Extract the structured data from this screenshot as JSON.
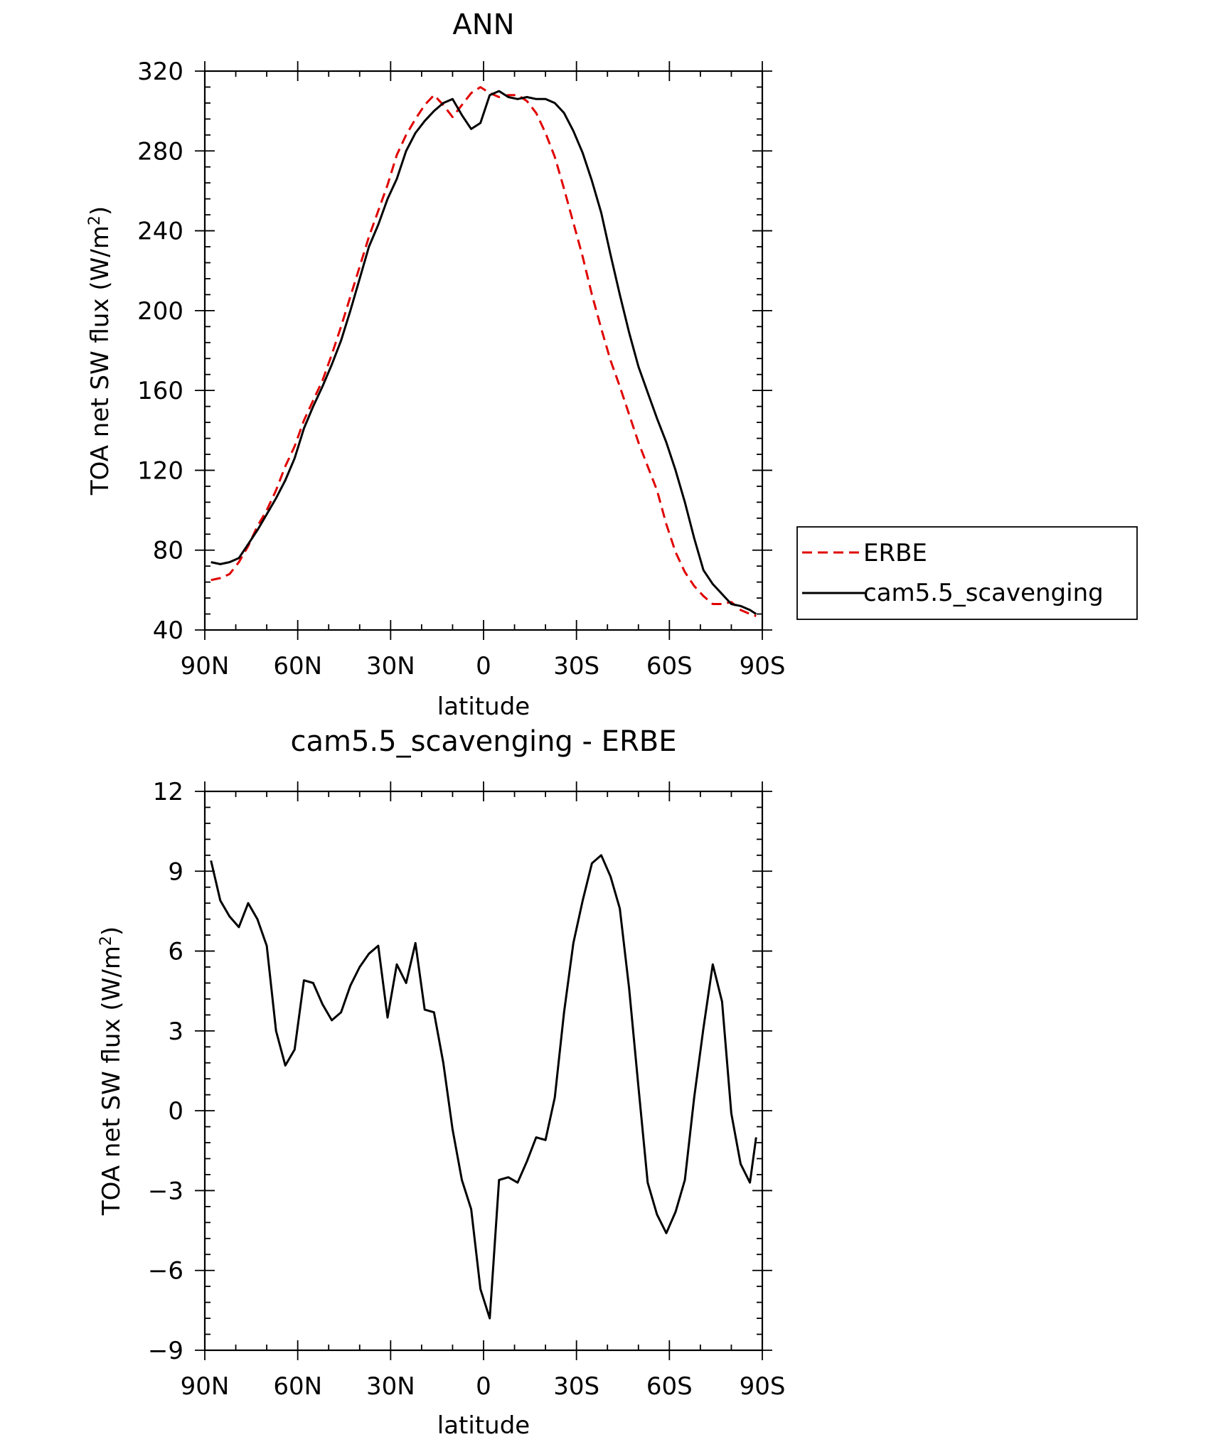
{
  "chart_data": [
    {
      "type": "line",
      "title": "ANN",
      "xlabel": "latitude",
      "ylabel_main": "TOA net SW flux (W/m",
      "ylabel_sup": "2",
      "ylabel_close": ")",
      "xlim": [
        88,
        -88
      ],
      "ylim": [
        40,
        320
      ],
      "yticks": [
        40,
        80,
        120,
        160,
        200,
        240,
        280,
        320
      ],
      "xticks": [
        {
          "value": 90,
          "label": "90N"
        },
        {
          "value": 60,
          "label": "60N"
        },
        {
          "value": 30,
          "label": "30N"
        },
        {
          "value": 0,
          "label": "0"
        },
        {
          "value": -30,
          "label": "30S"
        },
        {
          "value": -60,
          "label": "60S"
        },
        {
          "value": -90,
          "label": "90S"
        }
      ],
      "legend_position": "right",
      "series": [
        {
          "name": "ERBE",
          "color": "#e00000",
          "dash": true,
          "x": [
            88,
            85,
            82,
            79,
            76,
            73,
            70,
            67,
            64,
            61,
            58,
            55,
            52,
            49,
            46,
            43,
            40,
            37,
            34,
            31,
            28,
            25,
            22,
            19,
            16,
            13,
            10,
            7,
            4,
            1,
            -2,
            -5,
            -8,
            -11,
            -14,
            -17,
            -20,
            -23,
            -26,
            -29,
            -32,
            -35,
            -38,
            -41,
            -44,
            -47,
            -50,
            -53,
            -56,
            -59,
            -62,
            -65,
            -68,
            -71,
            -74,
            -77,
            -80,
            -83,
            -86,
            -88
          ],
          "y": [
            65,
            66,
            68,
            74,
            82,
            92,
            100,
            110,
            122,
            132,
            145,
            155,
            165,
            178,
            192,
            207,
            222,
            237,
            250,
            263,
            278,
            288,
            296,
            303,
            308,
            303,
            297,
            303,
            309,
            312,
            309,
            307,
            308,
            308,
            305,
            299,
            289,
            277,
            261,
            244,
            227,
            208,
            191,
            175,
            162,
            148,
            134,
            122,
            110,
            93,
            79,
            69,
            62,
            57,
            53,
            53,
            54,
            50,
            48,
            47
          ]
        },
        {
          "name": "cam5.5_scavenging",
          "color": "#000000",
          "dash": false,
          "x": [
            88,
            85,
            82,
            79,
            76,
            73,
            70,
            67,
            64,
            61,
            58,
            55,
            52,
            49,
            46,
            43,
            40,
            37,
            34,
            31,
            28,
            25,
            22,
            19,
            16,
            13,
            10,
            7,
            4,
            1,
            -2,
            -5,
            -8,
            -11,
            -14,
            -17,
            -20,
            -23,
            -26,
            -29,
            -32,
            -35,
            -38,
            -41,
            -44,
            -47,
            -50,
            -53,
            -56,
            -59,
            -62,
            -65,
            -68,
            -71,
            -74,
            -77,
            -80,
            -83,
            -86,
            -88
          ],
          "y": [
            74,
            73,
            74,
            76,
            83,
            90,
            98,
            106,
            115,
            126,
            141,
            152,
            162,
            173,
            185,
            200,
            216,
            232,
            243,
            256,
            266,
            280,
            289,
            295,
            300,
            304,
            306,
            298,
            291,
            294,
            308,
            310,
            307,
            306,
            307,
            306,
            306,
            304,
            299,
            290,
            279,
            265,
            249,
            228,
            208,
            189,
            172,
            159,
            146,
            134,
            120,
            104,
            86,
            70,
            63,
            58,
            53,
            52,
            50,
            48
          ]
        }
      ]
    },
    {
      "type": "line",
      "title": "cam5.5_scavenging - ERBE",
      "xlabel": "latitude",
      "ylabel_main": "TOA net SW flux (W/m",
      "ylabel_sup": "2",
      "ylabel_close": ")",
      "xlim": [
        88,
        -88
      ],
      "ylim": [
        -9,
        12
      ],
      "yticks": [
        -9,
        -6,
        -3,
        0,
        3,
        6,
        9,
        12
      ],
      "ytick_labels": [
        "−9",
        "−6",
        "−3",
        "0",
        "3",
        "6",
        "9",
        "12"
      ],
      "xticks": [
        {
          "value": 90,
          "label": "90N"
        },
        {
          "value": 60,
          "label": "60N"
        },
        {
          "value": 30,
          "label": "30N"
        },
        {
          "value": 0,
          "label": "0"
        },
        {
          "value": -30,
          "label": "30S"
        },
        {
          "value": -60,
          "label": "60S"
        },
        {
          "value": -90,
          "label": "90S"
        }
      ],
      "series": [
        {
          "color": "#000000",
          "dash": false,
          "x": [
            88,
            85,
            82,
            79,
            76,
            73,
            70,
            67,
            64,
            61,
            58,
            55,
            52,
            49,
            46,
            43,
            40,
            37,
            34,
            31,
            28,
            25,
            22,
            19,
            16,
            13,
            10,
            7,
            4,
            1,
            -2,
            -5,
            -8,
            -11,
            -14,
            -17,
            -20,
            -23,
            -26,
            -29,
            -32,
            -35,
            -38,
            -41,
            -44,
            -47,
            -50,
            -53,
            -56,
            -59,
            -62,
            -65,
            -68,
            -71,
            -74,
            -77,
            -80,
            -83,
            -86,
            -88
          ],
          "y": [
            9.4,
            7.9,
            7.3,
            6.9,
            7.8,
            7.2,
            6.2,
            3.0,
            1.7,
            2.3,
            4.9,
            4.8,
            4.0,
            3.4,
            3.7,
            4.7,
            5.4,
            5.9,
            6.2,
            3.5,
            5.5,
            4.8,
            6.3,
            3.8,
            3.7,
            1.8,
            -0.7,
            -2.6,
            -3.7,
            -6.7,
            -7.8,
            -2.6,
            -2.5,
            -2.7,
            -1.9,
            -1.0,
            -1.1,
            0.5,
            3.7,
            6.3,
            7.9,
            9.3,
            9.6,
            8.8,
            7.6,
            4.6,
            0.9,
            -2.7,
            -3.9,
            -4.6,
            -3.8,
            -2.6,
            0.5,
            3.1,
            5.5,
            4.1,
            -0.1,
            -2.0,
            -2.7,
            -1.0
          ]
        }
      ]
    }
  ]
}
